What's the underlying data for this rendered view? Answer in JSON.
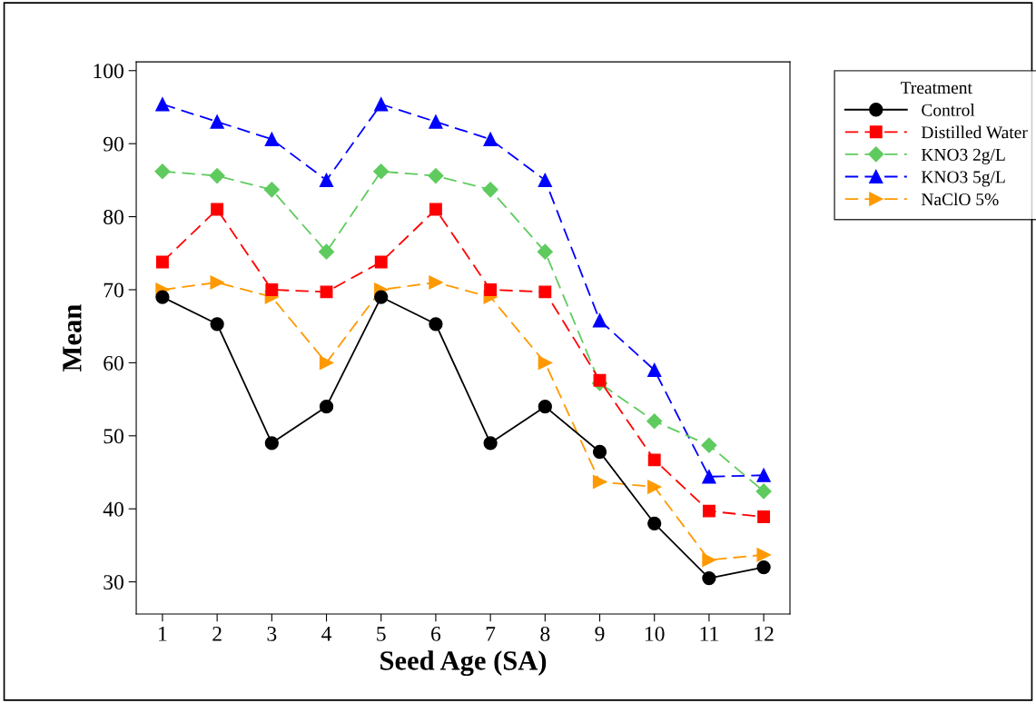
{
  "chart_data": {
    "type": "line",
    "xlabel": "Seed Age (SA)",
    "ylabel": "Mean",
    "legend_title": "Treatment",
    "legend": "right",
    "x": [
      1,
      2,
      3,
      4,
      5,
      6,
      7,
      8,
      9,
      10,
      11,
      12
    ],
    "xlim": [
      0.52,
      12.48
    ],
    "xticks": [
      1,
      2,
      3,
      4,
      5,
      6,
      7,
      8,
      9,
      10,
      11,
      12
    ],
    "ylim": [
      25.6,
      101.2
    ],
    "yticks": [
      30,
      40,
      50,
      60,
      70,
      80,
      90,
      100
    ],
    "grid": false,
    "series": [
      {
        "name": "Control",
        "color": "#000000",
        "marker": "circle",
        "line_style": "solid",
        "values": [
          69.0,
          65.3,
          49.0,
          54.0,
          69.0,
          65.3,
          49.0,
          54.0,
          47.8,
          38.0,
          30.5,
          32.0
        ]
      },
      {
        "name": "Distilled Water",
        "color": "#ff0000",
        "marker": "square",
        "line_style": "dashed",
        "values": [
          73.8,
          81.0,
          70.0,
          69.7,
          73.8,
          81.0,
          70.0,
          69.7,
          57.6,
          46.7,
          39.7,
          38.9
        ]
      },
      {
        "name": "KNO3 2g/L",
        "color": "#5fcb5f",
        "marker": "diamond",
        "line_style": "dashed",
        "values": [
          86.2,
          85.6,
          83.7,
          75.2,
          86.2,
          85.6,
          83.7,
          75.2,
          57.2,
          52.0,
          48.7,
          42.4
        ]
      },
      {
        "name": "KNO3 5g/L",
        "color": "#0000ff",
        "marker": "triangle",
        "line_style": "dashed",
        "values": [
          95.4,
          93.0,
          90.6,
          85.0,
          95.4,
          93.0,
          90.6,
          85.0,
          65.8,
          59.0,
          44.4,
          44.6
        ]
      },
      {
        "name": "NaClO 5%",
        "color": "#ff9900",
        "marker": "triangle-right",
        "line_style": "dashed",
        "values": [
          70.0,
          71.0,
          69.0,
          60.0,
          70.0,
          71.0,
          69.0,
          60.0,
          43.7,
          43.0,
          33.0,
          33.7
        ]
      }
    ]
  }
}
